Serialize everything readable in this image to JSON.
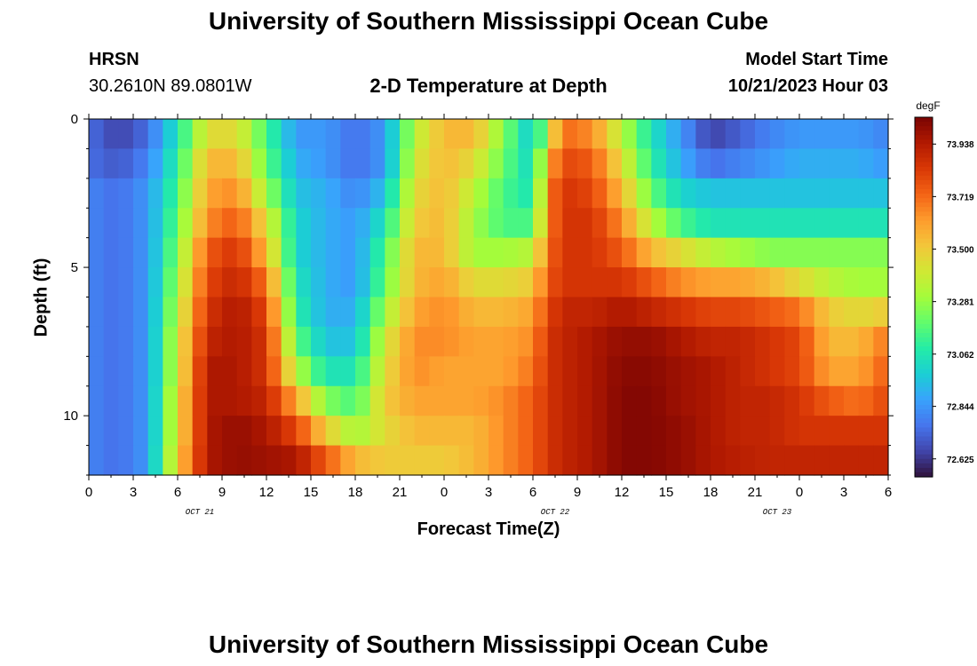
{
  "page": {
    "title": "University of Southern Mississippi Ocean Cube",
    "footer_title": "University of Southern Mississippi Ocean Cube",
    "station": "HRSN",
    "coords": "30.2610N  89.0801W",
    "plot_title": "2-D Temperature at Depth",
    "model_start_label": "Model Start Time",
    "model_start_value": "10/21/2023 Hour 03"
  },
  "chart_data": {
    "type": "heatmap",
    "title": "2-D Temperature at Depth",
    "xlabel": "Forecast Time(Z)",
    "ylabel": "Depth (ft)",
    "units": "degF",
    "x_tick_labels": [
      "0",
      "3",
      "6",
      "9",
      "12",
      "15",
      "18",
      "21",
      "0",
      "3",
      "6",
      "9",
      "12",
      "15",
      "18",
      "21",
      "0",
      "3",
      "6"
    ],
    "x_date_labels": [
      {
        "text": "OCT 21",
        "at_tick": 2.5
      },
      {
        "text": "OCT 22",
        "at_tick": 10.5
      },
      {
        "text": "OCT 23",
        "at_tick": 15.5
      }
    ],
    "xlim_hours": [
      0,
      54
    ],
    "y_tick_labels": [
      "0",
      "5",
      "10"
    ],
    "y_tick_values": [
      0,
      5,
      10
    ],
    "ylim": [
      0,
      12
    ],
    "colorbar_ticks": [
      "73.938",
      "73.719",
      "73.500",
      "73.281",
      "73.062",
      "72.844",
      "72.625"
    ],
    "colorbar_tick_values": [
      73.938,
      73.719,
      73.5,
      73.281,
      73.062,
      72.844,
      72.625
    ],
    "color_range": [
      72.55,
      74.05
    ],
    "colormap": [
      "#30123b",
      "#4145ab",
      "#4675ed",
      "#39a2fc",
      "#1bcfd4",
      "#24eca6",
      "#61fc6c",
      "#a4fc3b",
      "#d1e834",
      "#f3c63a",
      "#fe9b2d",
      "#f36315",
      "#d93806",
      "#b11901",
      "#7a0403"
    ],
    "depth_levels_ft": [
      0.5,
      1.5,
      2.5,
      3.5,
      4.5,
      5.5,
      6.5,
      7.5,
      8.5,
      9.5,
      10.5,
      11.5
    ],
    "time_keyframes_hours": [
      0,
      2,
      4,
      6,
      8,
      10,
      12,
      14,
      16,
      18,
      20,
      22,
      24,
      26,
      28,
      30,
      31,
      32,
      34,
      36,
      38,
      40,
      42,
      44,
      46,
      48,
      50,
      52,
      54
    ],
    "temperature_degF": [
      [
        72.75,
        72.65,
        72.75,
        73.05,
        73.45,
        73.45,
        73.15,
        72.85,
        72.85,
        72.75,
        72.85,
        73.35,
        73.55,
        73.55,
        73.25,
        72.95,
        73.35,
        73.72,
        73.65,
        73.35,
        73.05,
        72.85,
        72.65,
        72.72,
        72.8,
        72.85,
        72.85,
        72.85,
        72.8
      ],
      [
        72.75,
        72.7,
        72.8,
        73.1,
        73.55,
        73.55,
        73.2,
        72.9,
        72.85,
        72.75,
        72.85,
        73.4,
        73.55,
        73.45,
        73.2,
        73.0,
        73.55,
        73.8,
        73.75,
        73.45,
        73.1,
        72.9,
        72.75,
        72.8,
        72.85,
        72.9,
        72.9,
        72.9,
        72.85
      ],
      [
        72.8,
        72.75,
        72.85,
        73.15,
        73.6,
        73.65,
        73.3,
        72.95,
        72.9,
        72.8,
        72.95,
        73.45,
        73.55,
        73.35,
        73.15,
        73.05,
        73.65,
        73.85,
        73.8,
        73.55,
        73.2,
        73.0,
        72.95,
        72.95,
        72.95,
        72.95,
        72.95,
        72.95,
        72.95
      ],
      [
        72.8,
        72.75,
        72.85,
        73.2,
        73.65,
        73.75,
        73.45,
        73.0,
        72.9,
        72.85,
        73.05,
        73.5,
        73.55,
        73.3,
        73.15,
        73.15,
        73.65,
        73.85,
        73.85,
        73.65,
        73.35,
        73.15,
        73.05,
        73.05,
        73.05,
        73.05,
        73.05,
        73.05,
        73.05
      ],
      [
        72.8,
        72.75,
        72.85,
        73.25,
        73.75,
        73.85,
        73.55,
        73.0,
        72.9,
        72.85,
        73.15,
        73.55,
        73.55,
        73.3,
        73.3,
        73.35,
        73.7,
        73.85,
        73.85,
        73.75,
        73.55,
        73.45,
        73.35,
        73.3,
        73.25,
        73.25,
        73.25,
        73.25,
        73.25
      ],
      [
        72.8,
        72.75,
        72.85,
        73.3,
        73.8,
        73.9,
        73.7,
        73.05,
        72.9,
        72.85,
        73.2,
        73.55,
        73.6,
        73.45,
        73.45,
        73.5,
        73.75,
        73.85,
        73.85,
        73.85,
        73.75,
        73.65,
        73.6,
        73.6,
        73.55,
        73.45,
        73.35,
        73.3,
        73.3
      ],
      [
        72.8,
        72.75,
        72.85,
        73.35,
        73.85,
        73.95,
        73.8,
        73.1,
        72.9,
        72.9,
        73.3,
        73.6,
        73.65,
        73.55,
        73.55,
        73.6,
        73.8,
        73.9,
        73.9,
        73.95,
        73.9,
        73.85,
        73.8,
        73.8,
        73.75,
        73.7,
        73.5,
        73.45,
        73.5
      ],
      [
        72.8,
        72.75,
        72.85,
        73.4,
        73.9,
        73.95,
        73.85,
        73.2,
        72.95,
        72.95,
        73.4,
        73.65,
        73.65,
        73.6,
        73.6,
        73.65,
        73.85,
        73.9,
        73.95,
        74.0,
        74.0,
        73.95,
        73.9,
        73.9,
        73.85,
        73.8,
        73.55,
        73.55,
        73.7
      ],
      [
        72.8,
        72.75,
        72.85,
        73.4,
        73.95,
        73.95,
        73.85,
        73.35,
        73.05,
        73.05,
        73.45,
        73.65,
        73.6,
        73.6,
        73.6,
        73.7,
        73.85,
        73.9,
        73.95,
        74.02,
        74.02,
        73.98,
        73.95,
        73.9,
        73.85,
        73.8,
        73.6,
        73.6,
        73.75
      ],
      [
        72.8,
        72.75,
        72.85,
        73.45,
        73.95,
        73.95,
        73.9,
        73.6,
        73.25,
        73.15,
        73.5,
        73.6,
        73.6,
        73.6,
        73.65,
        73.75,
        73.85,
        73.9,
        73.95,
        74.03,
        74.03,
        73.98,
        73.95,
        73.9,
        73.9,
        73.85,
        73.75,
        73.7,
        73.8
      ],
      [
        72.8,
        72.75,
        72.85,
        73.45,
        73.95,
        74.0,
        73.95,
        73.8,
        73.5,
        73.3,
        73.45,
        73.55,
        73.55,
        73.55,
        73.65,
        73.75,
        73.85,
        73.9,
        73.95,
        74.03,
        74.03,
        74.0,
        73.95,
        73.9,
        73.9,
        73.85,
        73.85,
        73.85,
        73.85
      ],
      [
        72.8,
        72.75,
        72.85,
        73.5,
        73.95,
        74.0,
        73.98,
        73.95,
        73.75,
        73.55,
        73.5,
        73.5,
        73.5,
        73.55,
        73.65,
        73.75,
        73.85,
        73.9,
        73.95,
        74.03,
        74.03,
        74.0,
        73.95,
        73.92,
        73.9,
        73.9,
        73.9,
        73.9,
        73.9
      ]
    ]
  }
}
